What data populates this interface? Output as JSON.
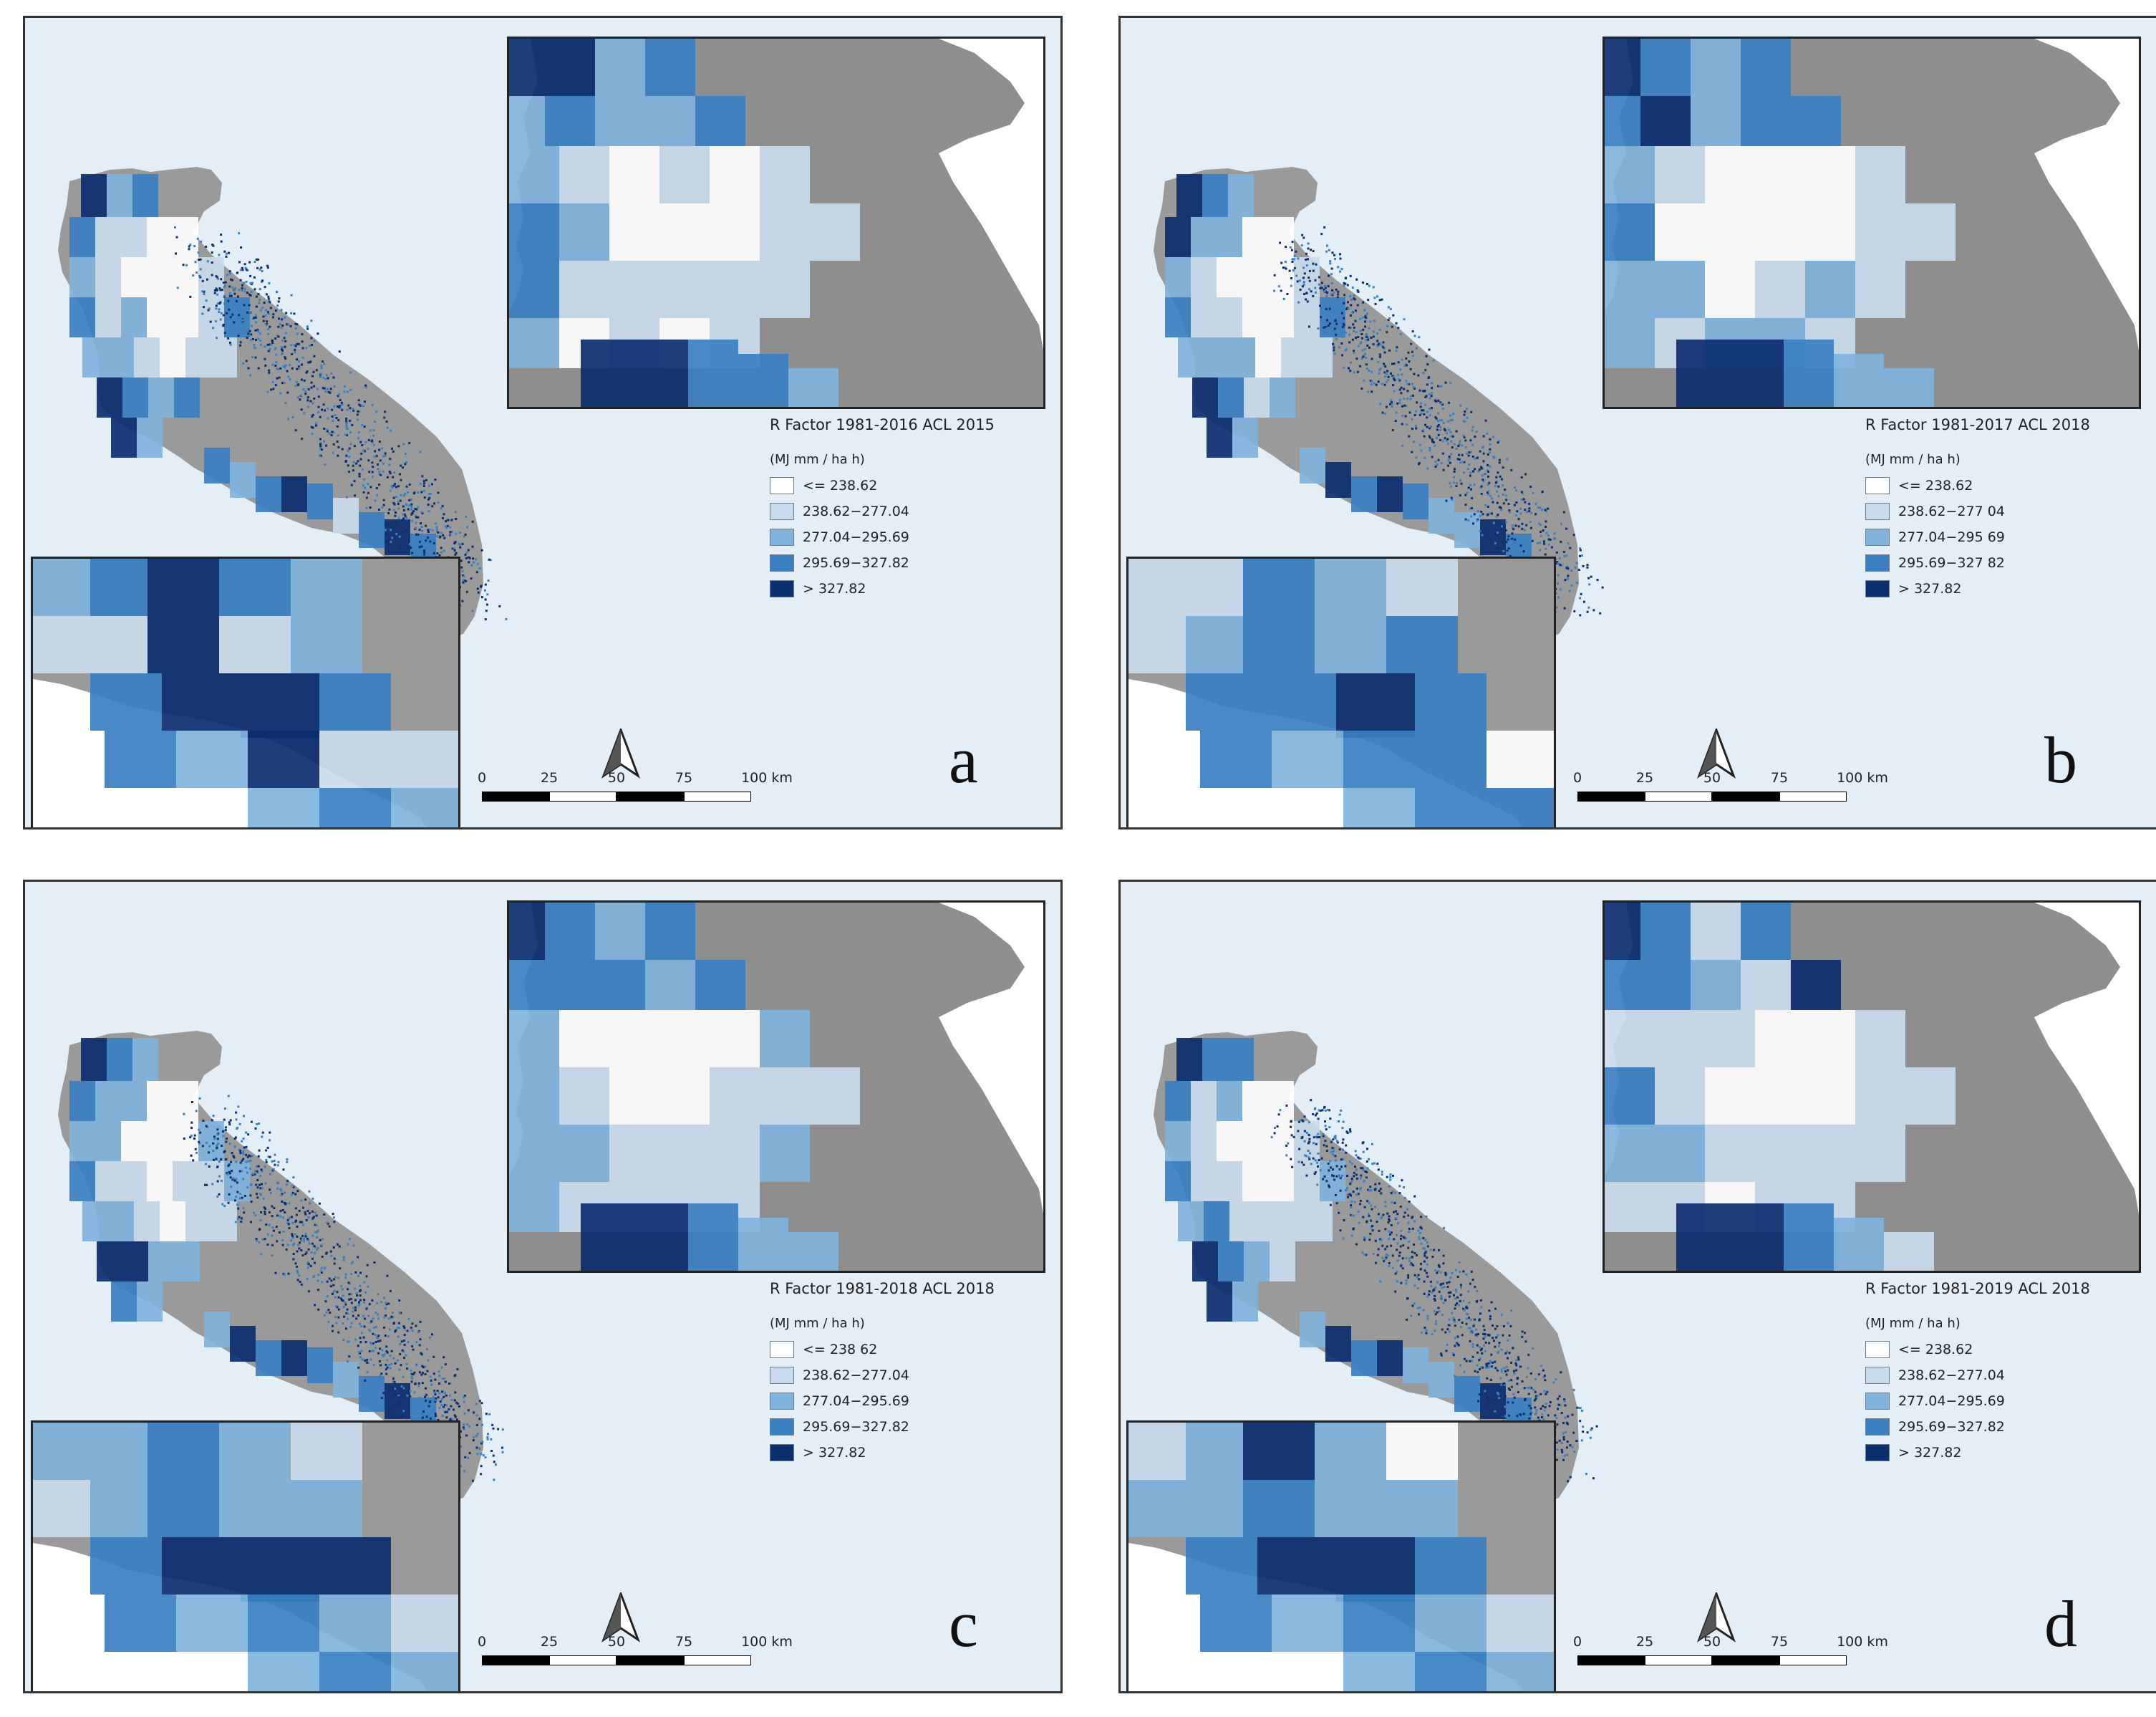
{
  "panels": [
    {
      "letter": "a",
      "title": "R Factor 1981-2016 ACL 2015",
      "unit": "(MJ mm / ha h)",
      "classes": [
        "<= 238.62",
        "238.62−277.04",
        "277.04−295.69",
        "295.69−327.82",
        "> 327.82"
      ],
      "scale_labels": [
        "0",
        "25",
        "50",
        "75",
        "100 km"
      ]
    },
    {
      "letter": "b",
      "title": "R Factor 1981-2017 ACL 2018",
      "unit": "(MJ mm / ha h)",
      "classes": [
        "<= 238.62",
        "238.62−277 04",
        "277.04−295 69",
        "295.69−327 82",
        "> 327.82"
      ],
      "scale_labels": [
        "0",
        "25",
        "50",
        "75",
        "100 km"
      ]
    },
    {
      "letter": "c",
      "title": "R Factor 1981-2018 ACL 2018",
      "unit": "(MJ mm / ha h)",
      "classes": [
        "<= 238 62",
        "238.62−277.04",
        "277.04−295.69",
        "295.69−327.82",
        "> 327.82"
      ],
      "scale_labels": [
        "0",
        "25",
        "50",
        "75",
        "100 km"
      ]
    },
    {
      "letter": "d",
      "title": "R Factor 1981-2019 ACL 2018",
      "unit": "(MJ mm / ha h)",
      "classes": [
        "<= 238.62",
        "238.62−277.04",
        "277.04−295.69",
        "295.69−327.82",
        "> 327.82"
      ],
      "scale_labels": [
        "0",
        "25",
        "50",
        "75",
        "100 km"
      ]
    }
  ],
  "colors": {
    "sea": "#e3eef6",
    "land": "#9a9a9a",
    "class_1": "#ffffff",
    "class_2": "#c9dcee",
    "class_3": "#80b3dd",
    "class_4": "#3a7fc0",
    "class_5": "#0b2e6e"
  },
  "icons": {
    "north_arrow": "north-arrow-icon"
  }
}
